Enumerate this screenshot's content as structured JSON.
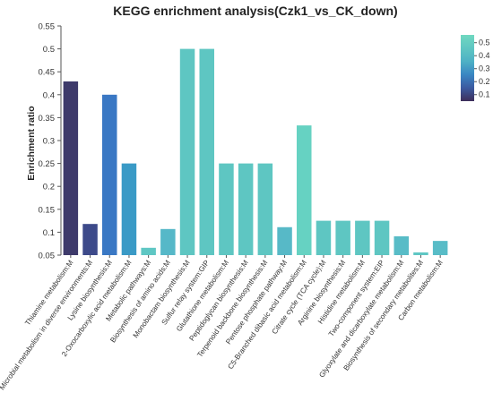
{
  "chart_data": {
    "type": "bar",
    "title": "KEGG enrichment analysis(Czk1_vs_CK_down)",
    "xlabel": "",
    "ylabel": "Enrichment ratio",
    "ylim": [
      0.05,
      0.55
    ],
    "yticks": [
      "0.05",
      "0.1",
      "0.15",
      "0.2",
      "0.25",
      "0.3",
      "0.35",
      "0.4",
      "0.45",
      "0.5",
      "0.55"
    ],
    "categories": [
      "Thiamine metabolism:M",
      "Microbial metabolism in diverse environments:M",
      "Lysine biosynthesis:M",
      "2-Oxocarboxylic acid metabolism:M",
      "Metabolic pathways:M",
      "Biosynthesis of amino acids:M",
      "Monobactam biosynthesis:M",
      "Sulfur relay system:GIP",
      "Glutathione metabolism:M",
      "Peptidoglycan biosynthesis:M",
      "Terpenoid backbone biosynthesis:M",
      "Pentose phosphate pathway:M",
      "C5-Branched dibasic acid metabolism:M",
      "Citrate cycle (TCA cycle):M",
      "Arginine biosynthesis:M",
      "Histidine metabolism:M",
      "Two-component system:EIP",
      "Glyoxylate and dicarboxylate metabolism:M",
      "Biosynthesis of secondary metabolites:M",
      "Carbon metabolism:M"
    ],
    "values": [
      0.429,
      0.118,
      0.4,
      0.25,
      0.066,
      0.107,
      0.5,
      0.5,
      0.25,
      0.25,
      0.25,
      0.111,
      0.333,
      0.125,
      0.125,
      0.125,
      0.125,
      0.091,
      0.056,
      0.081
    ],
    "colors": [
      "#3e3a6b",
      "#3d4a8a",
      "#3a78c4",
      "#3a9ac6",
      "#5fc7c4",
      "#56b8c8",
      "#5ec6c2",
      "#5ec6c2",
      "#5ec6c2",
      "#5ec6c2",
      "#5ec6c2",
      "#57b9c7",
      "#66d2c2",
      "#5ec6c2",
      "#5ec6c2",
      "#5ec6c2",
      "#5ec6c2",
      "#58bcc7",
      "#5fc7c4",
      "#58bcc7"
    ],
    "colorbar": {
      "ticks": [
        "0.1",
        "0.2",
        "0.3",
        "0.4",
        "0.5"
      ],
      "range": [
        0.05,
        0.56
      ],
      "stops": [
        "#3e2f5b",
        "#3b5aa0",
        "#3a86c3",
        "#4eb1c5",
        "#5fc6c2",
        "#70d8c0"
      ]
    }
  }
}
